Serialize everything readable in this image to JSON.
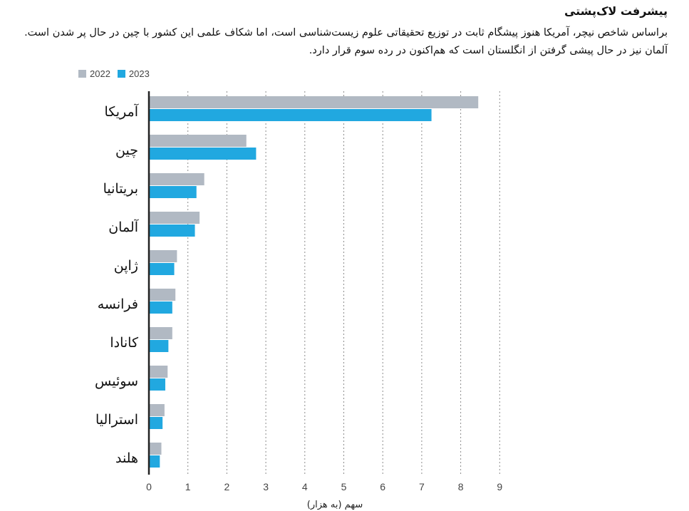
{
  "header": {
    "title": "پیشرفت لاک‌پشتی",
    "subtitle": "براساس شاخص نیچر، آمریکا هنوز پیشگام ثابت در توزیع تحقیقاتی علوم زیست‌شناسی است، اما شکاف علمی این کشور با چین در حال پر شدن است. آلمان نیز در حال پیشی گرفتن از انگلستان است که هم‌اکنون در رده سوم قرار دارد."
  },
  "colors": {
    "series_2022": "#b1b9c3",
    "series_2023": "#21a8e0",
    "grid": "#8c8c8c",
    "axis": "#222222"
  },
  "chart_data": {
    "type": "bar",
    "orientation": "horizontal",
    "categories": [
      "آمریکا",
      "چین",
      "بریتانیا",
      "آلمان",
      "ژاپن",
      "فرانسه",
      "کانادا",
      "سوئیس",
      "استرالیا",
      "هلند"
    ],
    "series": [
      {
        "name": "2022",
        "values": [
          8.45,
          2.5,
          1.42,
          1.3,
          0.72,
          0.68,
          0.6,
          0.48,
          0.4,
          0.32
        ]
      },
      {
        "name": "2023",
        "values": [
          7.25,
          2.75,
          1.22,
          1.18,
          0.65,
          0.6,
          0.5,
          0.42,
          0.35,
          0.28
        ]
      }
    ],
    "xlim": [
      0,
      9
    ],
    "xticks": [
      "0",
      "1",
      "2",
      "3",
      "4",
      "5",
      "6",
      "7",
      "8",
      "9"
    ],
    "xlabel": "سهم (به هزار)",
    "grid": "vertical-dotted",
    "legend": "top-left"
  }
}
